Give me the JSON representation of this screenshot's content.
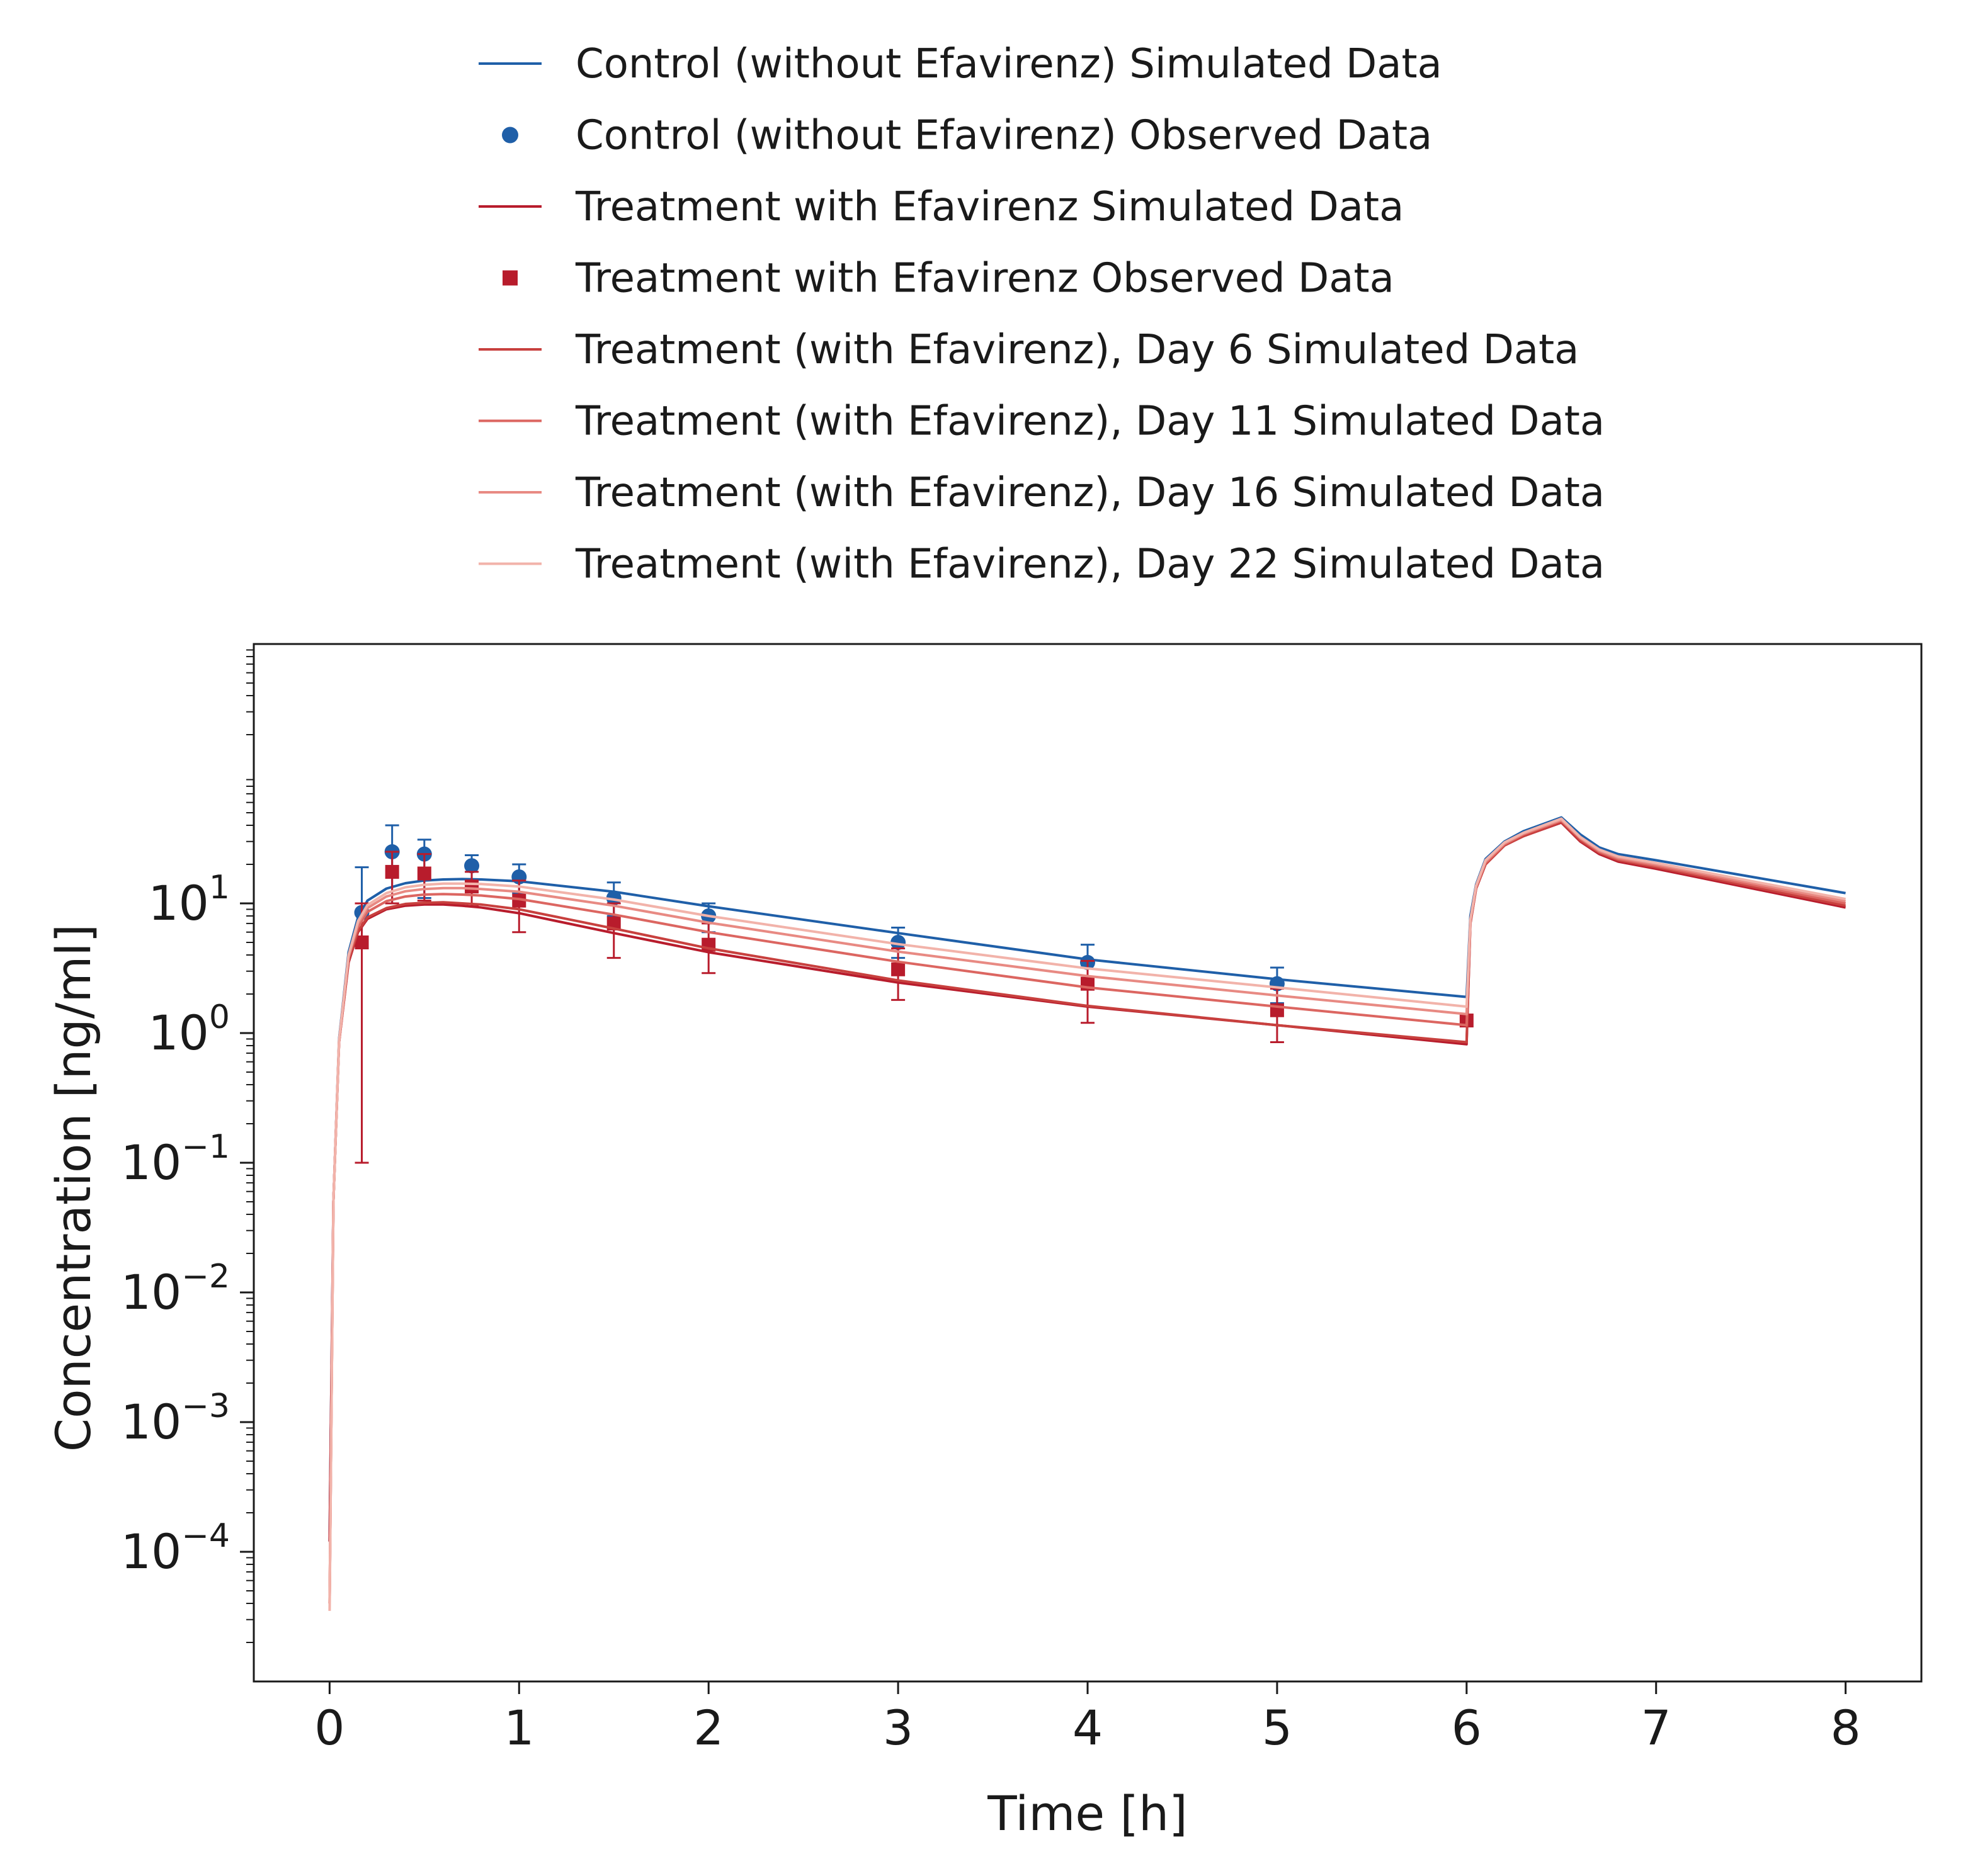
{
  "chart_data": {
    "type": "line",
    "xlabel": "Time [h]",
    "ylabel": "Concentration [ng/ml]",
    "xlim": [
      -0.4,
      8.4
    ],
    "ylim": [
      1e-05,
      1000
    ],
    "yscale": "log",
    "grid": false,
    "legend_position": "top",
    "x_ticks": [
      0,
      1,
      2,
      3,
      4,
      5,
      6,
      7,
      8
    ],
    "x_tick_labels": [
      "0",
      "1",
      "2",
      "3",
      "4",
      "5",
      "6",
      "7",
      "8"
    ],
    "y_ticks": [
      0.0001,
      0.001,
      0.01,
      0.1,
      1,
      10
    ],
    "y_tick_labels": [
      {
        "base": "10",
        "exp": "−4"
      },
      {
        "base": "10",
        "exp": "−3"
      },
      {
        "base": "10",
        "exp": "−2"
      },
      {
        "base": "10",
        "exp": "−1"
      },
      {
        "base": "10",
        "exp": "0"
      },
      {
        "base": "10",
        "exp": "1"
      }
    ],
    "series": [
      {
        "name": "Control (without Efavirenz) Simulated Data",
        "kind": "line",
        "color": "#1f5fa8",
        "x": [
          0,
          0.02,
          0.05,
          0.1,
          0.15,
          0.2,
          0.3,
          0.4,
          0.5,
          0.6,
          0.7,
          0.8,
          1.0,
          1.5,
          2.0,
          3.0,
          4.0,
          5.0,
          6.0,
          6.02,
          6.05,
          6.1,
          6.2,
          6.3,
          6.5,
          6.6,
          6.7,
          6.8,
          7.0,
          8.0
        ],
        "y": [
          0.00012,
          0.05,
          0.9,
          4.2,
          7.8,
          10.5,
          13.0,
          14.3,
          15.0,
          15.3,
          15.4,
          15.3,
          14.8,
          12.3,
          9.5,
          5.9,
          3.7,
          2.6,
          1.9,
          8,
          14,
          22,
          30,
          36,
          46,
          34,
          27,
          24,
          21.5,
          12
        ]
      },
      {
        "name": "Control (without Efavirenz) Observed Data",
        "kind": "scatter",
        "marker": "circle",
        "color": "#1f5fa8",
        "x": [
          0.17,
          0.33,
          0.5,
          0.75,
          1.0,
          1.5,
          2.0,
          3.0,
          4.0,
          5.0
        ],
        "y": [
          8.5,
          25,
          24,
          19.5,
          16,
          11,
          8,
          5,
          3.5,
          2.4
        ],
        "err_low": [
          4.5,
          10,
          11,
          15,
          12,
          8,
          6,
          3.8,
          2.5,
          1.7
        ],
        "err_high": [
          19,
          40,
          31,
          23.5,
          20,
          14.5,
          10,
          6.5,
          4.8,
          3.2
        ]
      },
      {
        "name": "Treatment with Efavirenz Simulated Data",
        "kind": "line",
        "color": "#b81c2c",
        "x": [
          0,
          0.02,
          0.05,
          0.1,
          0.15,
          0.2,
          0.3,
          0.4,
          0.5,
          0.6,
          0.7,
          0.8,
          1.0,
          1.5,
          2.0,
          3.0,
          4.0,
          5.0,
          6.0,
          6.02,
          6.05,
          6.1,
          6.2,
          6.3,
          6.5,
          6.6,
          6.7,
          6.8,
          7.0,
          8.0
        ],
        "y": [
          0.00012,
          0.05,
          0.85,
          3.5,
          6.0,
          7.6,
          9.0,
          9.6,
          9.8,
          9.8,
          9.6,
          9.3,
          8.4,
          5.9,
          4.2,
          2.45,
          1.6,
          1.15,
          0.82,
          7,
          13,
          20,
          28,
          33,
          42,
          30,
          24,
          21,
          18.5,
          9.3
        ]
      },
      {
        "name": "Treatment with Efavirenz Observed Data",
        "kind": "scatter",
        "marker": "square",
        "color": "#b81c2c",
        "x": [
          0.17,
          0.33,
          0.5,
          0.75,
          1.0,
          1.5,
          2.0,
          3.0,
          4.0,
          5.0,
          6.0
        ],
        "y": [
          5,
          17.5,
          17,
          13.5,
          10.5,
          7,
          4.8,
          3.1,
          2.4,
          1.5,
          1.25
        ],
        "err_low": [
          0.1,
          10,
          10.5,
          9.5,
          6,
          3.8,
          2.9,
          1.8,
          1.2,
          0.85,
          1.25
        ],
        "err_high": [
          10,
          25,
          24,
          17.5,
          15,
          10,
          7,
          4.5,
          3.6,
          2.2,
          1.25
        ]
      },
      {
        "name": "Treatment (with Efavirenz), Day 6 Simulated Data",
        "kind": "line",
        "color": "#c8403e",
        "x": [
          0,
          0.02,
          0.05,
          0.1,
          0.15,
          0.2,
          0.3,
          0.4,
          0.5,
          0.6,
          0.7,
          0.8,
          1.0,
          1.5,
          2.0,
          3.0,
          4.0,
          5.0,
          6.0,
          6.02,
          6.05,
          6.1,
          6.2,
          6.3,
          6.5,
          6.6,
          6.7,
          6.8,
          7.0,
          8.0
        ],
        "y": [
          4e-05,
          0.05,
          0.85,
          3.6,
          6.1,
          7.8,
          9.2,
          9.9,
          10.1,
          10.2,
          10.0,
          9.8,
          9.0,
          6.4,
          4.5,
          2.55,
          1.62,
          1.15,
          0.85,
          7,
          13,
          20,
          28,
          33,
          42.5,
          30.5,
          24.5,
          21.5,
          19,
          9.6
        ]
      },
      {
        "name": "Treatment (with Efavirenz), Day 11 Simulated Data",
        "kind": "line",
        "color": "#dc6661",
        "x": [
          0,
          0.02,
          0.05,
          0.1,
          0.15,
          0.2,
          0.3,
          0.4,
          0.5,
          0.6,
          0.7,
          0.8,
          1.0,
          1.5,
          2.0,
          3.0,
          4.0,
          5.0,
          6.0,
          6.02,
          6.05,
          6.1,
          6.2,
          6.3,
          6.5,
          6.6,
          6.7,
          6.8,
          7.0,
          8.0
        ],
        "y": [
          4e-05,
          0.05,
          0.85,
          3.8,
          6.6,
          8.6,
          10.4,
          11.3,
          11.7,
          11.8,
          11.7,
          11.5,
          10.8,
          8.2,
          6.0,
          3.55,
          2.25,
          1.6,
          1.15,
          7.2,
          13.2,
          20.5,
          28.5,
          34,
          43.5,
          31.5,
          25,
          22,
          19.5,
          10
        ]
      },
      {
        "name": "Treatment (with Efavirenz), Day 16 Simulated Data",
        "kind": "line",
        "color": "#e88a83",
        "x": [
          0,
          0.02,
          0.05,
          0.1,
          0.15,
          0.2,
          0.3,
          0.4,
          0.5,
          0.6,
          0.7,
          0.8,
          1.0,
          1.5,
          2.0,
          3.0,
          4.0,
          5.0,
          6.0,
          6.02,
          6.05,
          6.1,
          6.2,
          6.3,
          6.5,
          6.6,
          6.7,
          6.8,
          7.0,
          8.0
        ],
        "y": [
          4e-05,
          0.05,
          0.87,
          3.9,
          7.0,
          9.2,
          11.3,
          12.4,
          12.9,
          13.1,
          13.1,
          12.9,
          12.3,
          9.6,
          7.1,
          4.25,
          2.75,
          1.95,
          1.4,
          7.4,
          13.5,
          21,
          29,
          34.5,
          44,
          32,
          25.5,
          22.5,
          20,
          10.4
        ]
      },
      {
        "name": "Treatment (with Efavirenz), Day 22 Simulated Data",
        "kind": "line",
        "color": "#f2b3aa",
        "x": [
          0,
          0.02,
          0.05,
          0.1,
          0.15,
          0.2,
          0.3,
          0.4,
          0.5,
          0.6,
          0.7,
          0.8,
          1.0,
          1.5,
          2.0,
          3.0,
          4.0,
          5.0,
          6.0,
          6.02,
          6.05,
          6.1,
          6.2,
          6.3,
          6.5,
          6.6,
          6.7,
          6.8,
          7.0,
          8.0
        ],
        "y": [
          3.5e-05,
          0.05,
          0.88,
          4.0,
          7.3,
          9.7,
          12.0,
          13.3,
          13.9,
          14.2,
          14.2,
          14.1,
          13.5,
          10.7,
          8.0,
          4.85,
          3.15,
          2.25,
          1.6,
          7.5,
          13.7,
          21.5,
          29.5,
          35,
          45,
          32.5,
          26,
          23,
          20.5,
          10.8
        ]
      }
    ]
  }
}
